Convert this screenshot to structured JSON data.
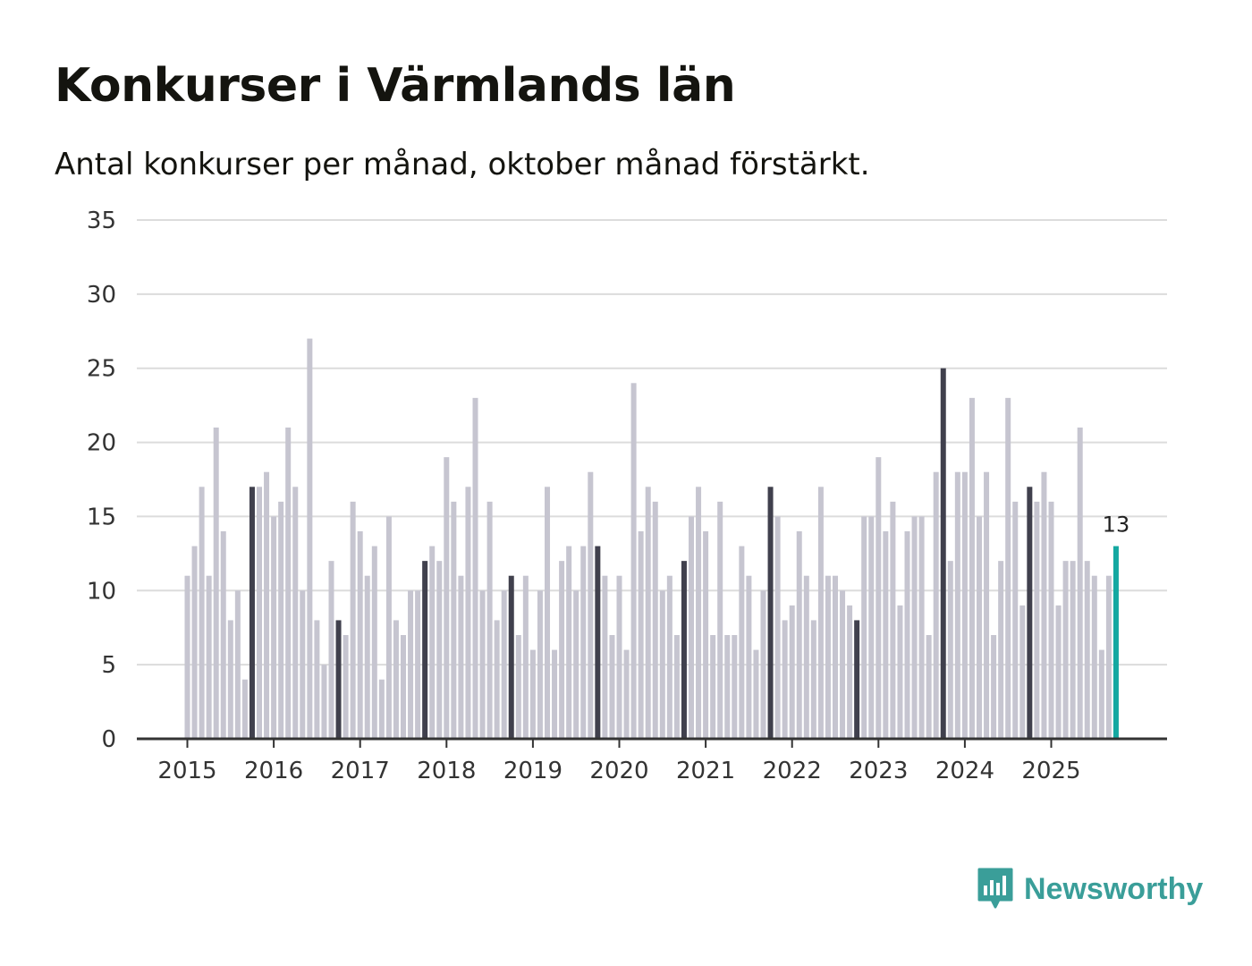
{
  "title": "Konkurser i Värmlands län",
  "subtitle": "Antal konkurser per månad, oktober månad förstärkt.",
  "brand": {
    "name": "Newsworthy",
    "color": "#3a9e99"
  },
  "colors": {
    "bar": "#c6c5d0",
    "highlight": "#40404d",
    "latest": "#14a8a1",
    "grid": "#dcdcdc",
    "axis": "#333333",
    "text": "#333333"
  },
  "chart_data": {
    "type": "bar",
    "title": "Konkurser i Värmlands län",
    "subtitle": "Antal konkurser per månad, oktober månad förstärkt.",
    "xlabel": "",
    "ylabel": "",
    "ylim": [
      0,
      35
    ],
    "yticks": [
      0,
      5,
      10,
      15,
      20,
      25,
      30,
      35
    ],
    "year_labels": [
      "2015",
      "2016",
      "2017",
      "2018",
      "2019",
      "2020",
      "2021",
      "2022",
      "2023",
      "2024",
      "2025"
    ],
    "start": "2015-01",
    "highlight_month": "oktober",
    "latest_label": "13",
    "values": [
      11,
      13,
      17,
      11,
      21,
      14,
      8,
      10,
      4,
      17,
      17,
      18,
      15,
      16,
      21,
      17,
      10,
      27,
      8,
      5,
      12,
      8,
      7,
      16,
      14,
      11,
      13,
      4,
      15,
      8,
      7,
      10,
      10,
      12,
      13,
      12,
      19,
      16,
      11,
      17,
      23,
      10,
      16,
      8,
      10,
      11,
      7,
      11,
      6,
      10,
      17,
      6,
      12,
      13,
      10,
      13,
      18,
      13,
      11,
      7,
      11,
      6,
      24,
      14,
      17,
      16,
      10,
      11,
      7,
      12,
      15,
      17,
      14,
      7,
      16,
      7,
      7,
      13,
      11,
      6,
      10,
      17,
      15,
      8,
      9,
      14,
      11,
      8,
      17,
      11,
      11,
      10,
      9,
      8,
      15,
      15,
      19,
      14,
      16,
      9,
      14,
      15,
      15,
      7,
      18,
      25,
      12,
      18,
      18,
      23,
      15,
      18,
      7,
      12,
      23,
      16,
      9,
      17,
      16,
      18,
      16,
      9,
      12,
      12,
      21,
      12,
      11,
      6,
      11,
      13
    ]
  }
}
